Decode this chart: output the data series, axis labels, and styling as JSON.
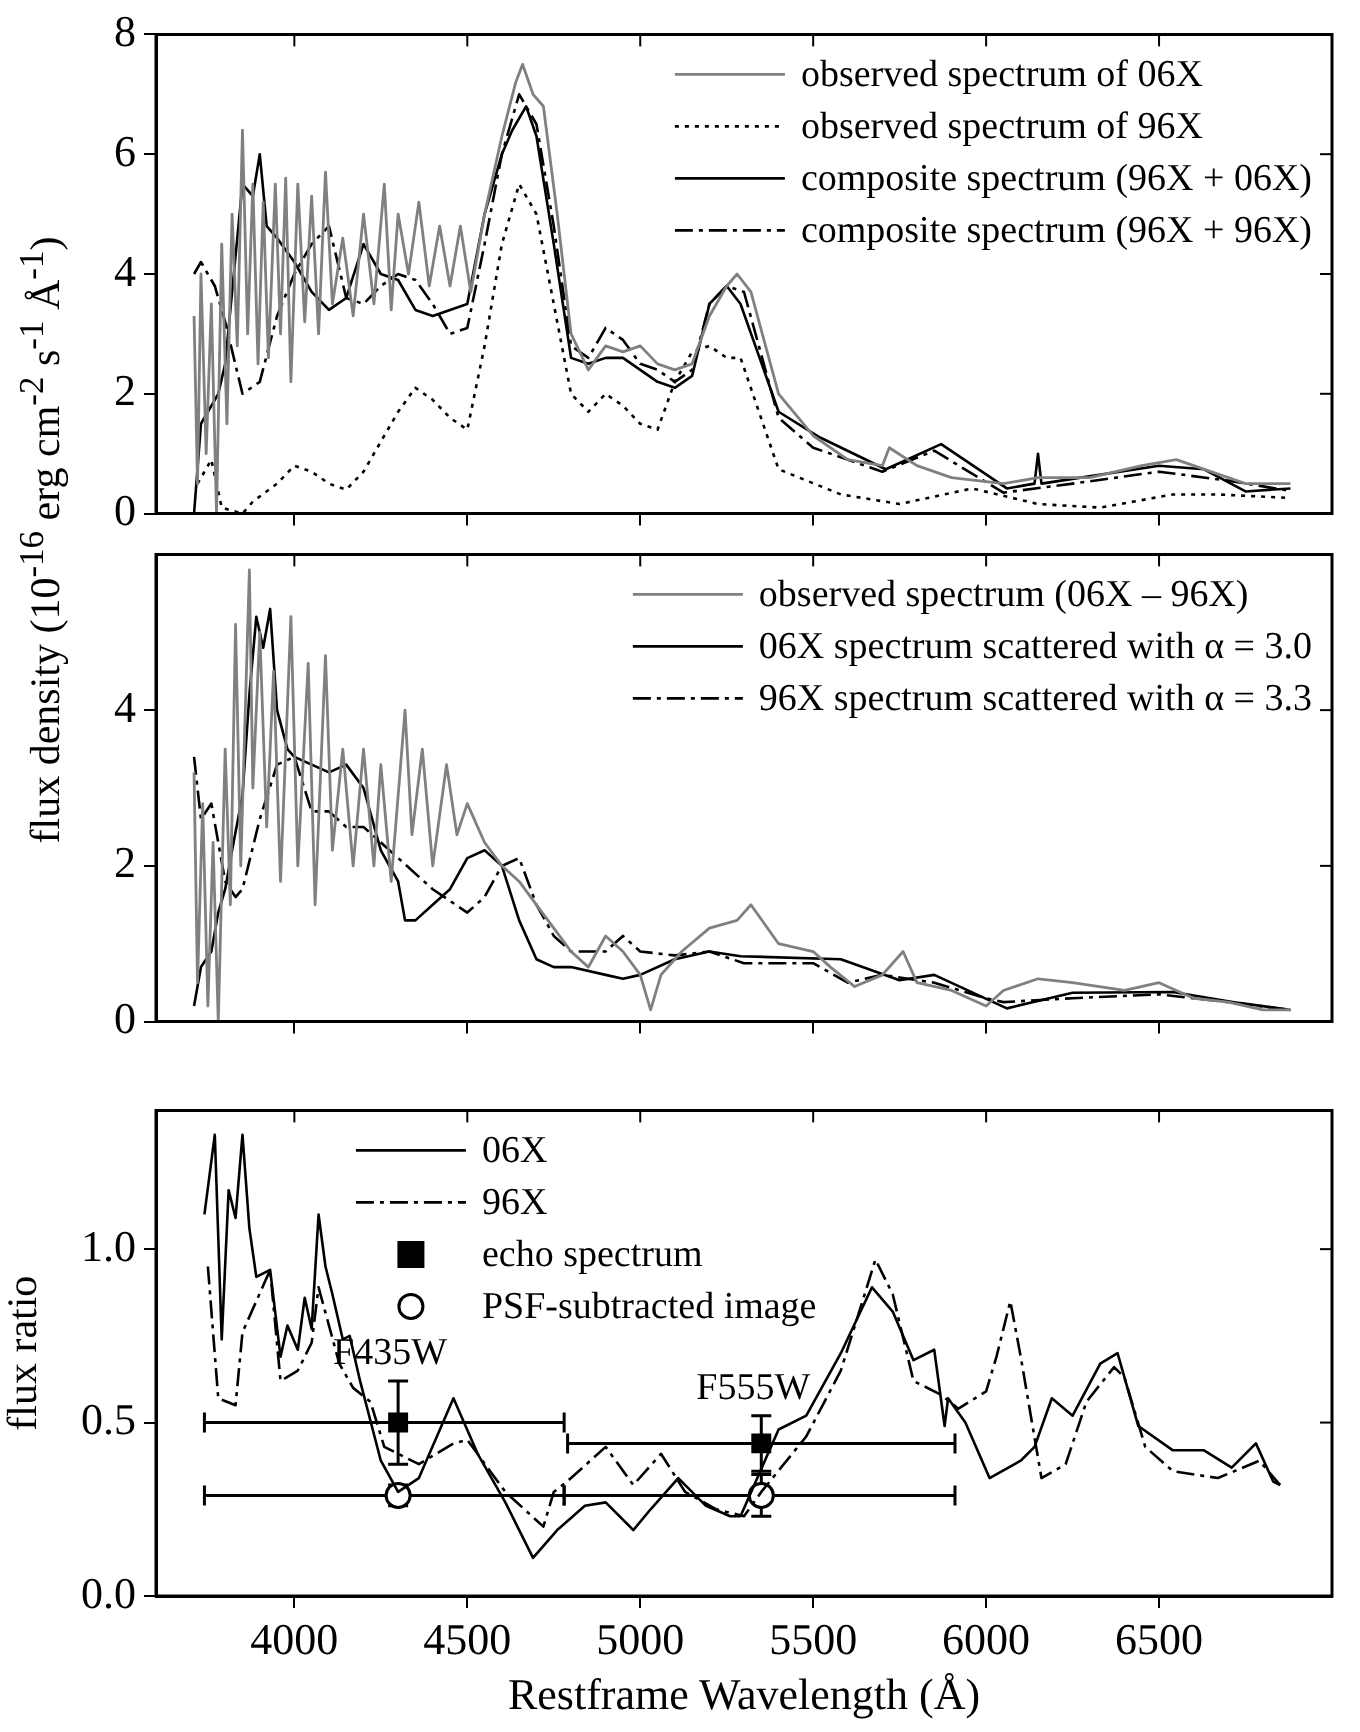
{
  "chart_data": [
    {
      "type": "line",
      "ylabel": "flux density (10$^{-16}$ erg cm$^{-2}$ s$^{-1}$ Å$^{-1}$)",
      "xlim": [
        3600,
        7000
      ],
      "xticks": [
        4000,
        4500,
        5000,
        5500,
        6000,
        6500
      ],
      "ylim": [
        0,
        8
      ],
      "yticks": [
        0,
        2,
        4,
        6,
        8
      ],
      "tick_labels": "y",
      "legend": "top right",
      "series": [
        {
          "name": "observed spectrum of 06X",
          "color": "#808080",
          "line_style": "solid",
          "x": [
            3710,
            3720,
            3730,
            3745,
            3760,
            3775,
            3790,
            3805,
            3820,
            3835,
            3850,
            3865,
            3880,
            3895,
            3910,
            3925,
            3945,
            3960,
            3975,
            3990,
            4010,
            4030,
            4050,
            4070,
            4090,
            4110,
            4140,
            4170,
            4200,
            4230,
            4260,
            4280,
            4300,
            4330,
            4360,
            4390,
            4420,
            4450,
            4480,
            4510,
            4550,
            4600,
            4640,
            4660,
            4690,
            4720,
            4760,
            4800,
            4850,
            4900,
            4950,
            5000,
            5050,
            5100,
            5150,
            5200,
            5250,
            5280,
            5320,
            5400,
            5500,
            5600,
            5700,
            5720,
            5800,
            5900,
            6050,
            6150,
            6300,
            6450,
            6550,
            6650,
            6750,
            6880
          ],
          "values": [
            3.3,
            0.5,
            4.0,
            1.0,
            3.5,
            0.0,
            4.5,
            1.5,
            5.0,
            2.8,
            6.4,
            3.0,
            5.5,
            2.5,
            5.2,
            2.6,
            5.5,
            3.0,
            5.6,
            2.2,
            5.5,
            3.2,
            5.3,
            3.0,
            5.7,
            3.5,
            4.6,
            3.3,
            5.0,
            3.5,
            5.5,
            3.4,
            5.0,
            4.0,
            5.2,
            3.8,
            4.8,
            3.8,
            4.8,
            3.7,
            5.0,
            6.3,
            7.2,
            7.5,
            7.0,
            6.8,
            5.0,
            3.0,
            2.4,
            2.8,
            2.7,
            2.8,
            2.5,
            2.4,
            2.5,
            3.3,
            3.8,
            4.0,
            3.7,
            2.0,
            1.3,
            0.9,
            0.8,
            1.1,
            0.8,
            0.6,
            0.5,
            0.6,
            0.6,
            0.8,
            0.9,
            0.7,
            0.5,
            0.5
          ]
        },
        {
          "name": "observed spectrum of 96X",
          "color": "#000000",
          "line_style": "dotted",
          "x": [
            3720,
            3760,
            3790,
            3850,
            3880,
            3950,
            4000,
            4050,
            4100,
            4150,
            4200,
            4250,
            4300,
            4350,
            4400,
            4450,
            4500,
            4550,
            4600,
            4650,
            4700,
            4750,
            4800,
            4850,
            4900,
            4950,
            5000,
            5050,
            5100,
            5150,
            5200,
            5250,
            5290,
            5400,
            5580,
            5750,
            5960,
            6150,
            6330,
            6540,
            6670,
            6880
          ],
          "values": [
            0.5,
            0.9,
            0.1,
            0.0,
            0.2,
            0.5,
            0.8,
            0.7,
            0.5,
            0.4,
            0.7,
            1.2,
            1.7,
            2.1,
            1.9,
            1.6,
            1.4,
            2.8,
            4.5,
            5.5,
            5.0,
            3.5,
            2.0,
            1.7,
            2.0,
            1.8,
            1.5,
            1.4,
            2.2,
            2.7,
            2.8,
            2.6,
            2.6,
            0.74,
            0.32,
            0.16,
            0.42,
            0.16,
            0.1,
            0.32,
            0.32,
            0.26
          ]
        },
        {
          "name": "composite spectrum (96X + 06X)",
          "color": "#000000",
          "line_style": "solid",
          "x": [
            3710,
            3730,
            3780,
            3800,
            3850,
            3880,
            3900,
            3920,
            3950,
            4000,
            4050,
            4100,
            4150,
            4200,
            4250,
            4300,
            4350,
            4400,
            4450,
            4500,
            4550,
            4600,
            4630,
            4670,
            4700,
            4750,
            4800,
            4850,
            4900,
            4950,
            5000,
            5050,
            5100,
            5150,
            5200,
            5250,
            5290,
            5400,
            5520,
            5710,
            5870,
            6060,
            6140,
            6150,
            6160,
            6250,
            6500,
            6630,
            6750,
            6880
          ],
          "values": [
            0,
            1.5,
            2.0,
            2.5,
            5.5,
            5.3,
            6.0,
            4.8,
            4.6,
            4.2,
            3.7,
            3.4,
            3.6,
            4.5,
            4.0,
            3.9,
            3.4,
            3.3,
            3.4,
            3.5,
            5.0,
            6.0,
            6.4,
            6.8,
            6.3,
            4.5,
            2.6,
            2.5,
            2.6,
            2.6,
            2.4,
            2.2,
            2.1,
            2.3,
            3.5,
            3.8,
            3.5,
            1.7,
            1.27,
            0.74,
            1.16,
            0.42,
            0.5,
            1.0,
            0.5,
            0.58,
            0.8,
            0.74,
            0.37,
            0.42
          ]
        },
        {
          "name": "composite spectrum (96X + 96X)",
          "color": "#000000",
          "line_style": "dashdot",
          "x": [
            3710,
            3730,
            3770,
            3800,
            3850,
            3900,
            3950,
            4000,
            4050,
            4100,
            4150,
            4200,
            4250,
            4300,
            4350,
            4400,
            4450,
            4500,
            4550,
            4600,
            4650,
            4700,
            4750,
            4800,
            4850,
            4900,
            4950,
            5000,
            5050,
            5100,
            5150,
            5200,
            5250,
            5300,
            5400,
            5500,
            5700,
            5850,
            6050,
            6250,
            6500,
            6700,
            6880
          ],
          "values": [
            4.0,
            4.2,
            3.8,
            3.2,
            2.0,
            2.2,
            3.3,
            4.0,
            4.5,
            4.8,
            3.6,
            3.5,
            3.8,
            4.0,
            3.9,
            3.5,
            3.0,
            3.1,
            4.5,
            6.0,
            7.0,
            6.5,
            4.8,
            2.8,
            2.6,
            3.1,
            2.9,
            2.5,
            2.4,
            2.2,
            2.4,
            3.5,
            3.8,
            3.7,
            1.6,
            1.1,
            0.7,
            1.05,
            0.35,
            0.5,
            0.7,
            0.55,
            0.38
          ]
        }
      ]
    },
    {
      "type": "line",
      "xlim": [
        3600,
        7000
      ],
      "xticks": [
        4000,
        4500,
        5000,
        5500,
        6000,
        6500
      ],
      "ylim": [
        0,
        6
      ],
      "yticks": [
        0,
        2,
        4
      ],
      "tick_labels": "y",
      "legend": "top right",
      "series": [
        {
          "name": "observed spectrum (06X – 96X)",
          "color": "#808080",
          "line_style": "solid",
          "x": [
            3710,
            3720,
            3735,
            3750,
            3765,
            3780,
            3800,
            3815,
            3830,
            3845,
            3870,
            3880,
            3900,
            3920,
            3940,
            3960,
            3990,
            4010,
            4040,
            4060,
            4090,
            4110,
            4140,
            4170,
            4200,
            4230,
            4250,
            4280,
            4320,
            4340,
            4370,
            4400,
            4440,
            4470,
            4500,
            4550,
            4600,
            4650,
            4700,
            4750,
            4800,
            4850,
            4900,
            4950,
            5000,
            5030,
            5060,
            5120,
            5200,
            5280,
            5320,
            5400,
            5500,
            5550,
            5620,
            5700,
            5760,
            5800,
            5900,
            6000,
            6050,
            6150,
            6250,
            6400,
            6500,
            6600,
            6700,
            6800,
            6880
          ],
          "values": [
            3.2,
            0.5,
            2.8,
            0.2,
            2.3,
            0.0,
            3.5,
            1.5,
            5.1,
            2.0,
            5.8,
            3.0,
            5.0,
            2.5,
            4.5,
            1.8,
            5.2,
            2.0,
            4.6,
            1.5,
            4.7,
            2.2,
            3.5,
            2.0,
            3.5,
            2.0,
            3.3,
            1.8,
            4.0,
            2.4,
            3.5,
            2.0,
            3.3,
            2.4,
            2.8,
            2.3,
            2.0,
            1.8,
            1.5,
            1.2,
            0.9,
            0.7,
            1.1,
            0.9,
            0.6,
            0.15,
            0.6,
            0.9,
            1.2,
            1.3,
            1.5,
            1.0,
            0.9,
            0.7,
            0.45,
            0.6,
            0.9,
            0.5,
            0.4,
            0.2,
            0.4,
            0.55,
            0.5,
            0.4,
            0.5,
            0.3,
            0.25,
            0.15,
            0.15
          ]
        },
        {
          "name": "06X spectrum scattered with α = 3.0",
          "color": "#000000",
          "line_style": "solid",
          "x": [
            3710,
            3730,
            3760,
            3780,
            3800,
            3820,
            3850,
            3870,
            3890,
            3910,
            3930,
            3950,
            3980,
            4000,
            4050,
            4100,
            4150,
            4200,
            4250,
            4300,
            4320,
            4350,
            4400,
            4450,
            4500,
            4550,
            4600,
            4650,
            4700,
            4750,
            4800,
            4900,
            4950,
            5000,
            5100,
            5200,
            5290,
            5580,
            5750,
            5850,
            6060,
            6250,
            6540,
            6730,
            6880
          ],
          "values": [
            0.2,
            0.7,
            0.9,
            1.4,
            1.7,
            2.2,
            2.9,
            4.2,
            5.2,
            4.8,
            5.3,
            4.0,
            3.5,
            3.4,
            3.3,
            3.2,
            3.3,
            3.0,
            2.2,
            1.8,
            1.3,
            1.3,
            1.5,
            1.7,
            2.1,
            2.2,
            2.0,
            1.3,
            0.8,
            0.7,
            0.7,
            0.6,
            0.55,
            0.6,
            0.8,
            0.9,
            0.84,
            0.8,
            0.53,
            0.6,
            0.17,
            0.37,
            0.38,
            0.24,
            0.15
          ]
        },
        {
          "name": "96X spectrum scattered with α = 3.3",
          "color": "#000000",
          "line_style": "dashdot",
          "x": [
            3710,
            3730,
            3760,
            3800,
            3830,
            3850,
            3900,
            3950,
            4000,
            4050,
            4100,
            4150,
            4200,
            4300,
            4400,
            4500,
            4550,
            4600,
            4650,
            4700,
            4750,
            4800,
            4900,
            4950,
            5000,
            5100,
            5200,
            5300,
            5500,
            5600,
            5700,
            5850,
            6000,
            6050,
            6250,
            6500,
            6700,
            6880
          ],
          "values": [
            3.4,
            2.6,
            2.8,
            1.8,
            1.6,
            1.7,
            2.6,
            3.3,
            3.4,
            2.7,
            2.7,
            2.5,
            2.5,
            2.1,
            1.7,
            1.4,
            1.6,
            2.0,
            2.1,
            1.5,
            1.1,
            0.9,
            0.9,
            1.1,
            0.9,
            0.85,
            0.9,
            0.75,
            0.75,
            0.5,
            0.6,
            0.5,
            0.3,
            0.25,
            0.3,
            0.35,
            0.25,
            0.15
          ]
        }
      ]
    },
    {
      "type": "line",
      "ylabel": "flux ratio",
      "xlabel": "Restframe Wavelength (Å)",
      "xlim": [
        3600,
        7000
      ],
      "xticks": [
        4000,
        4500,
        5000,
        5500,
        6000,
        6500
      ],
      "ylim": [
        0,
        1.4
      ],
      "yticks": [
        {
          "value": 0,
          "label": "0.0"
        },
        {
          "value": 0.5,
          "label": "0.5"
        },
        {
          "value": 1,
          "label": "1.0"
        }
      ],
      "legend": "top left",
      "annotations": [
        {
          "text": "F435W",
          "x": 4300,
          "y": 0.62
        },
        {
          "text": "F555W",
          "x": 5350,
          "y": 0.52
        }
      ],
      "series": [
        {
          "name": "06X",
          "color": "#000000",
          "line_style": "solid",
          "x": [
            3740,
            3770,
            3790,
            3810,
            3830,
            3850,
            3870,
            3890,
            3930,
            3960,
            3980,
            4010,
            4030,
            4050,
            4070,
            4090,
            4110,
            4140,
            4160,
            4190,
            4250,
            4300,
            4360,
            4460,
            4530,
            4610,
            4690,
            4760,
            4840,
            4900,
            4980,
            5030,
            5110,
            5190,
            5260,
            5290,
            5400,
            5480,
            5580,
            5670,
            5730,
            5790,
            5850,
            5880,
            5890,
            5940,
            6010,
            6100,
            6140,
            6190,
            6250,
            6330,
            6380,
            6440,
            6540,
            6630,
            6710,
            6780,
            6830,
            6850
          ],
          "values": [
            1.1,
            1.33,
            0.74,
            1.17,
            1.09,
            1.33,
            1.06,
            0.92,
            0.94,
            0.69,
            0.78,
            0.71,
            0.86,
            0.77,
            1.1,
            0.95,
            0.87,
            0.74,
            0.75,
            0.62,
            0.39,
            0.3,
            0.34,
            0.57,
            0.41,
            0.27,
            0.11,
            0.19,
            0.26,
            0.27,
            0.19,
            0.25,
            0.34,
            0.26,
            0.23,
            0.23,
            0.48,
            0.52,
            0.7,
            0.89,
            0.82,
            0.68,
            0.71,
            0.49,
            0.57,
            0.5,
            0.34,
            0.39,
            0.43,
            0.57,
            0.52,
            0.67,
            0.7,
            0.49,
            0.42,
            0.42,
            0.37,
            0.44,
            0.33,
            0.32
          ]
        },
        {
          "name": "96X",
          "color": "#000000",
          "line_style": "dashdot",
          "x": [
            3750,
            3780,
            3830,
            3850,
            3930,
            3960,
            4010,
            4050,
            4070,
            4130,
            4170,
            4220,
            4260,
            4300,
            4360,
            4460,
            4500,
            4610,
            4720,
            4750,
            4800,
            4900,
            4980,
            5060,
            5130,
            5220,
            5300,
            5350,
            5480,
            5580,
            5680,
            5730,
            5790,
            5870,
            5920,
            6000,
            6030,
            6070,
            6100,
            6160,
            6230,
            6290,
            6370,
            6400,
            6460,
            6540,
            6670,
            6790,
            6850
          ],
          "values": [
            0.95,
            0.57,
            0.55,
            0.76,
            0.94,
            0.62,
            0.65,
            0.73,
            0.89,
            0.67,
            0.6,
            0.56,
            0.43,
            0.41,
            0.38,
            0.44,
            0.45,
            0.3,
            0.2,
            0.3,
            0.34,
            0.43,
            0.32,
            0.41,
            0.3,
            0.25,
            0.23,
            0.3,
            0.46,
            0.65,
            0.97,
            0.87,
            0.62,
            0.58,
            0.54,
            0.59,
            0.69,
            0.85,
            0.69,
            0.34,
            0.38,
            0.56,
            0.66,
            0.63,
            0.43,
            0.36,
            0.34,
            0.39,
            0.32
          ]
        },
        {
          "name": "echo spectrum",
          "type": "scatter",
          "marker": "square",
          "color": "#000000",
          "x": [
            4300,
            5350
          ],
          "values": [
            0.5,
            0.44
          ],
          "errors": [
            0.12,
            0.08
          ],
          "xerrors": [
            [
              3740,
              4780
            ],
            [
              4790,
              5910
            ]
          ]
        },
        {
          "name": "PSF-subtracted image",
          "type": "scatter",
          "marker": "circle",
          "color": "#ffffff",
          "x": [
            4300,
            5350
          ],
          "values": [
            0.29,
            0.29
          ],
          "errors": [
            0.03,
            0.06
          ],
          "xerrors": [
            [
              3740,
              4780
            ],
            [
              4780,
              5910
            ]
          ]
        }
      ]
    }
  ]
}
